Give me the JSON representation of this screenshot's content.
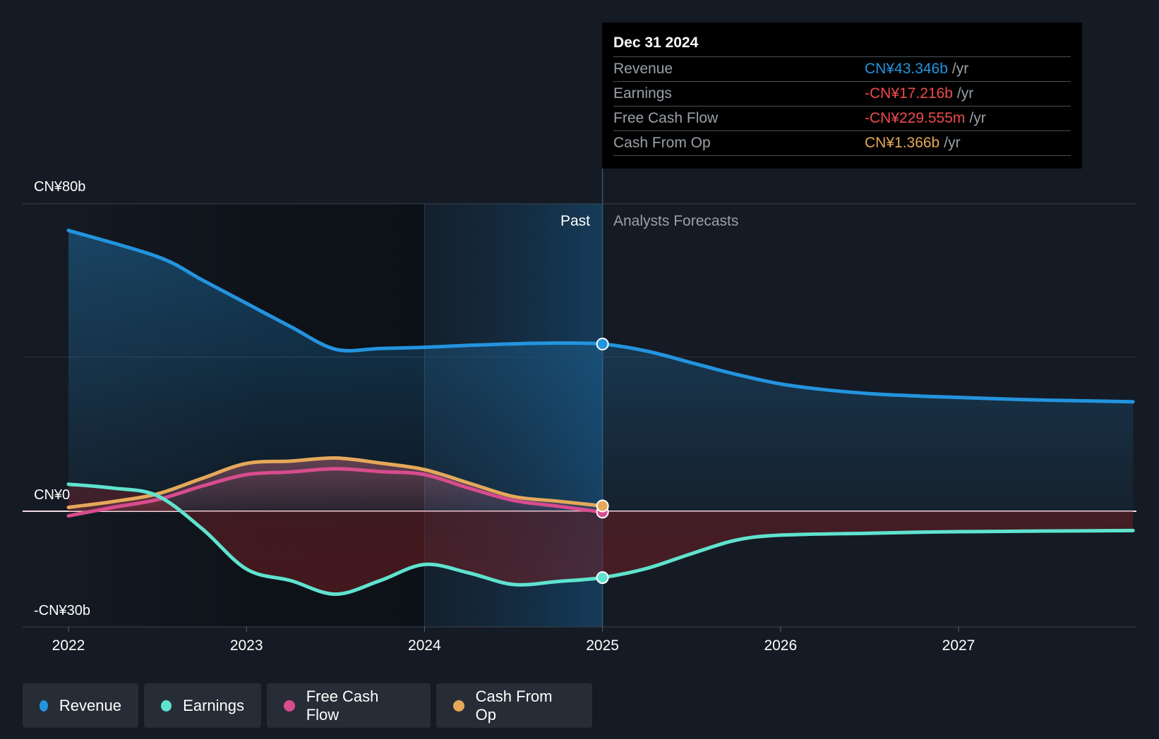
{
  "chart_data": {
    "type": "area",
    "title": "",
    "xlabel": "",
    "ylabel": "",
    "ylim": [
      -30,
      80
    ],
    "y_tick_labels": [
      "CN¥80b",
      "CN¥0",
      "-CN¥30b"
    ],
    "y_tick_values": [
      80,
      0,
      -30
    ],
    "x_tick_labels": [
      "2022",
      "2023",
      "2024",
      "2025",
      "2026",
      "2027"
    ],
    "x_tick_values": [
      2022,
      2023,
      2024,
      2025,
      2026,
      2027
    ],
    "xlim": [
      2021.75,
      2027.98
    ],
    "past_label": "Past",
    "forecast_label": "Analysts Forecasts",
    "divider_x": 2025.0,
    "highlight_start_x": 2024.0,
    "series": [
      {
        "name": "Revenue",
        "color": "#2394df",
        "x": [
          2022.0,
          2022.5,
          2022.75,
          2023.0,
          2023.25,
          2023.5,
          2023.75,
          2024.0,
          2024.25,
          2024.5,
          2024.75,
          2025.0,
          2025.25,
          2025.5,
          2025.75,
          2026.0,
          2026.25,
          2026.5,
          2026.75,
          2027.0,
          2027.25,
          2027.5,
          2027.98
        ],
        "values": [
          72.8,
          66.0,
          60.0,
          53.9,
          47.8,
          42.0,
          42.2,
          42.5,
          43.0,
          43.4,
          43.6,
          43.35,
          41.5,
          38.5,
          35.5,
          33.0,
          31.5,
          30.5,
          29.9,
          29.5,
          29.1,
          28.8,
          28.4
        ]
      },
      {
        "name": "Earnings",
        "color": "#5fe3cf",
        "x": [
          2022.0,
          2022.25,
          2022.5,
          2022.75,
          2023.0,
          2023.25,
          2023.5,
          2023.75,
          2024.0,
          2024.25,
          2024.5,
          2024.75,
          2025.0,
          2025.25,
          2025.5,
          2025.75,
          2026.0,
          2026.5,
          2027.0,
          2027.98
        ],
        "values": [
          7.0,
          6.0,
          4.0,
          -4.5,
          -15.0,
          -18.0,
          -21.5,
          -18.0,
          -13.8,
          -16.0,
          -19.0,
          -18.2,
          -17.2,
          -14.8,
          -11.0,
          -7.5,
          -6.2,
          -5.7,
          -5.3,
          -5.0
        ]
      },
      {
        "name": "Free Cash Flow",
        "color": "#d84c8e",
        "x": [
          2022.0,
          2022.25,
          2022.5,
          2022.75,
          2023.0,
          2023.25,
          2023.5,
          2023.75,
          2024.0,
          2024.25,
          2024.5,
          2024.75,
          2025.0
        ],
        "values": [
          -1.2,
          1.0,
          3.0,
          6.5,
          9.5,
          10.2,
          11.0,
          10.3,
          9.5,
          6.0,
          2.8,
          1.3,
          -0.23
        ]
      },
      {
        "name": "Cash From Op",
        "color": "#e5a85a",
        "x": [
          2022.0,
          2022.25,
          2022.5,
          2022.75,
          2023.0,
          2023.25,
          2023.5,
          2023.75,
          2024.0,
          2024.25,
          2024.5,
          2024.75,
          2025.0
        ],
        "values": [
          1.0,
          2.5,
          4.5,
          8.5,
          12.4,
          13.0,
          13.8,
          12.5,
          10.8,
          7.3,
          3.8,
          2.6,
          1.37
        ]
      }
    ]
  },
  "tooltip": {
    "date": "Dec 31 2024",
    "unit": "/yr",
    "rows": [
      {
        "label": "Revenue",
        "value": "CN¥43.346b",
        "color": "#2394df"
      },
      {
        "label": "Earnings",
        "value": "-CN¥17.216b",
        "color": "#ef4b4b"
      },
      {
        "label": "Free Cash Flow",
        "value": "-CN¥229.555m",
        "color": "#ef4b4b"
      },
      {
        "label": "Cash From Op",
        "value": "CN¥1.366b",
        "color": "#e5a85a"
      }
    ]
  },
  "legend": [
    {
      "label": "Revenue",
      "color": "#2394df"
    },
    {
      "label": "Earnings",
      "color": "#5fe3cf"
    },
    {
      "label": "Free Cash Flow",
      "color": "#d84c8e"
    },
    {
      "label": "Cash From Op",
      "color": "#e5a85a"
    }
  ]
}
